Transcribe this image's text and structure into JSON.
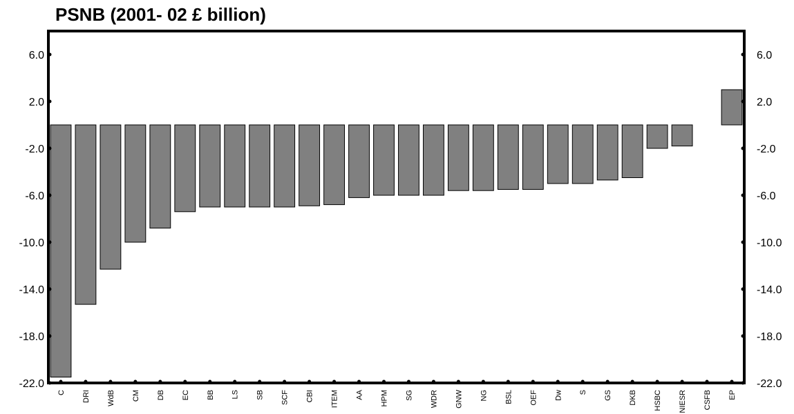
{
  "chart_data": {
    "type": "bar",
    "title": "PSNB (2001- 02 £ billion)",
    "xlabel": "",
    "ylabel": "",
    "categories": [
      "C",
      "DRI",
      "WdB",
      "CM",
      "DB",
      "EC",
      "BB",
      "LS",
      "SB",
      "SCF",
      "CBI",
      "ITEM",
      "AA",
      "HPM",
      "SG",
      "WDR",
      "GNW",
      "NG",
      "BSL",
      "OEF",
      "Dw",
      "S",
      "GS",
      "DKB",
      "HSBC",
      "NIESR",
      "CSFB",
      "EP"
    ],
    "values": [
      -21.5,
      -15.3,
      -12.3,
      -10.0,
      -8.8,
      -7.4,
      -7.0,
      -7.0,
      -7.0,
      -7.0,
      -6.9,
      -6.8,
      -6.2,
      -6.0,
      -6.0,
      -6.0,
      -5.6,
      -5.6,
      -5.5,
      -5.5,
      -5.0,
      -5.0,
      -4.7,
      -4.5,
      -2.0,
      -1.8,
      0,
      3.0
    ],
    "ylim": [
      -22,
      8
    ],
    "yticks": [
      6,
      2,
      -2,
      -6,
      -10,
      -14,
      -18,
      -22
    ],
    "ytick_labels": [
      "6.0",
      "2.0",
      "-2.0",
      "-6.0",
      "-10.0",
      "-14.0",
      "-18.0",
      "-22.0"
    ],
    "colors": {
      "bar": "#808080",
      "bar_edge": "#000000",
      "axis": "#000000"
    },
    "grid": false,
    "legend": "none"
  }
}
